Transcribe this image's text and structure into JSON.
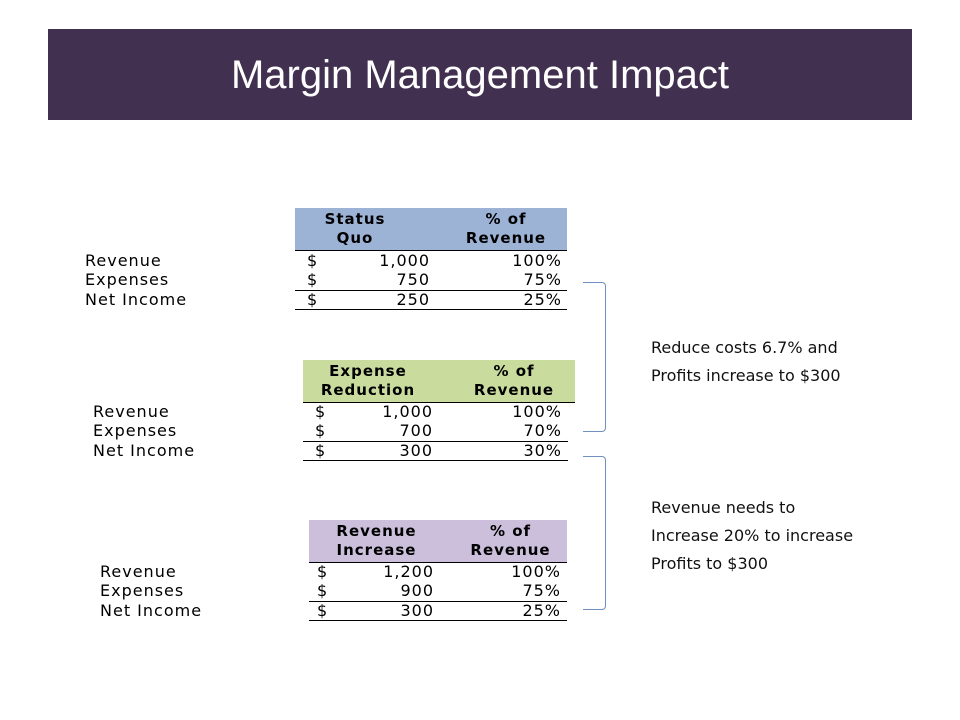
{
  "title": "Margin Management Impact",
  "tables": [
    {
      "header": [
        "Status\nQuo",
        "% of\nRevenue"
      ],
      "header_color": "#9db3d6",
      "rows": [
        {
          "label": "Revenue",
          "dollar": "$",
          "amount": "1,000",
          "pct": "100%"
        },
        {
          "label": "Expenses",
          "dollar": "$",
          "amount": "750",
          "pct": "75%"
        },
        {
          "label": "Net Income",
          "dollar": "$",
          "amount": "250",
          "pct": "25%"
        }
      ]
    },
    {
      "header": [
        "Expense\nReduction",
        "% of\nRevenue"
      ],
      "header_color": "#c9dc9e",
      "rows": [
        {
          "label": "Revenue",
          "dollar": "$",
          "amount": "1,000",
          "pct": "100%"
        },
        {
          "label": "Expenses",
          "dollar": "$",
          "amount": "700",
          "pct": "70%"
        },
        {
          "label": "Net Income",
          "dollar": "$",
          "amount": "300",
          "pct": "30%"
        }
      ]
    },
    {
      "header": [
        "Revenue\nIncrease",
        "% of\nRevenue"
      ],
      "header_color": "#cbbfdc",
      "rows": [
        {
          "label": "Revenue",
          "dollar": "$",
          "amount": "1,200",
          "pct": "100%"
        },
        {
          "label": "Expenses",
          "dollar": "$",
          "amount": "900",
          "pct": "75%"
        },
        {
          "label": "Net Income",
          "dollar": "$",
          "amount": "300",
          "pct": "25%"
        }
      ]
    }
  ],
  "notes": [
    [
      "Reduce costs 6.7% and",
      "Profits increase to $300"
    ],
    [
      "Revenue needs to",
      "Increase 20% to increase",
      "Profits to $300"
    ]
  ],
  "colors": {
    "title_bar": "#41304f",
    "bracket": "#6f8fbf"
  }
}
